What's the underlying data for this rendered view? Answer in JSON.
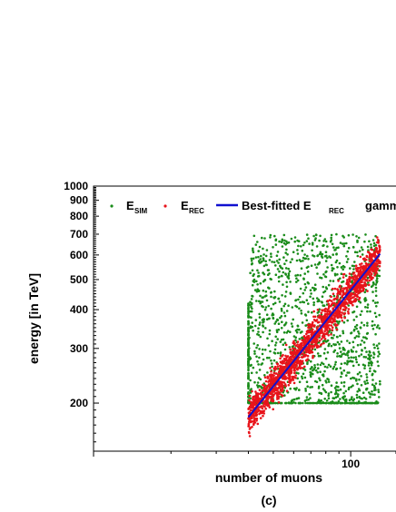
{
  "chart_data": {
    "type": "scatter",
    "panel_label": "(c)",
    "xlabel": "number of muons",
    "ylabel": "energy [in TeV]",
    "x_scale": "log",
    "y_scale": "log",
    "xlim": [
      10,
      150
    ],
    "ylim": [
      140,
      1000
    ],
    "x_tick_labels": [
      {
        "value": 100,
        "label": "100"
      }
    ],
    "y_tick_labels": [
      {
        "value": 1000,
        "label": "1000"
      },
      {
        "value": 900,
        "label": "900"
      },
      {
        "value": 800,
        "label": "800"
      },
      {
        "value": 700,
        "label": "700"
      },
      {
        "value": 600,
        "label": "600"
      },
      {
        "value": 500,
        "label": "500"
      },
      {
        "value": 400,
        "label": "400"
      },
      {
        "value": 300,
        "label": "300"
      },
      {
        "value": 200,
        "label": "200"
      }
    ],
    "legend": {
      "position": "top",
      "entries": [
        {
          "name": "E",
          "sub": "SIM",
          "marker": "dot",
          "color": "#1a8c1a"
        },
        {
          "name": "E",
          "sub": "REC",
          "marker": "dot",
          "color": "#e8141b"
        },
        {
          "name": "Best-fitted E",
          "sub": "REC",
          "marker": "line",
          "color": "#1010d0"
        },
        {
          "name": "gamma",
          "marker": "none",
          "color": "#000000",
          "clipped": true
        }
      ]
    },
    "series": [
      {
        "name": "E_SIM",
        "color": "#1a8c1a",
        "x_range": [
          40,
          130
        ],
        "y_range": [
          200,
          700
        ],
        "approx_points": [
          [
            40,
            200
          ],
          [
            40,
            250
          ],
          [
            40,
            300
          ],
          [
            40,
            350
          ],
          [
            40,
            400
          ],
          [
            40,
            505
          ],
          [
            55,
            200
          ],
          [
            55,
            300
          ],
          [
            55,
            450
          ],
          [
            58,
            605
          ],
          [
            70,
            200
          ],
          [
            70,
            280
          ],
          [
            70,
            350
          ],
          [
            70,
            520
          ],
          [
            72,
            650
          ],
          [
            90,
            200
          ],
          [
            90,
            300
          ],
          [
            90,
            400
          ],
          [
            90,
            550
          ],
          [
            95,
            650
          ],
          [
            110,
            220
          ],
          [
            110,
            300
          ],
          [
            110,
            450
          ],
          [
            110,
            600
          ],
          [
            125,
            200
          ],
          [
            125,
            300
          ],
          [
            125,
            450
          ],
          [
            125,
            700
          ]
        ]
      },
      {
        "name": "E_REC",
        "color": "#e8141b",
        "x_range": [
          40,
          130
        ],
        "approx_points": [
          [
            40,
            160
          ],
          [
            40,
            175
          ],
          [
            40,
            200
          ],
          [
            50,
            205
          ],
          [
            50,
            225
          ],
          [
            60,
            250
          ],
          [
            60,
            270
          ],
          [
            70,
            290
          ],
          [
            70,
            320
          ],
          [
            80,
            330
          ],
          [
            80,
            365
          ],
          [
            90,
            370
          ],
          [
            90,
            410
          ],
          [
            100,
            420
          ],
          [
            100,
            460
          ],
          [
            110,
            480
          ],
          [
            115,
            520
          ],
          [
            120,
            540
          ],
          [
            125,
            580
          ],
          [
            130,
            650
          ]
        ]
      },
      {
        "name": "Best-fitted E_REC",
        "color": "#1010d0",
        "type": "line",
        "points": [
          [
            40,
            180
          ],
          [
            130,
            605
          ]
        ]
      }
    ]
  }
}
